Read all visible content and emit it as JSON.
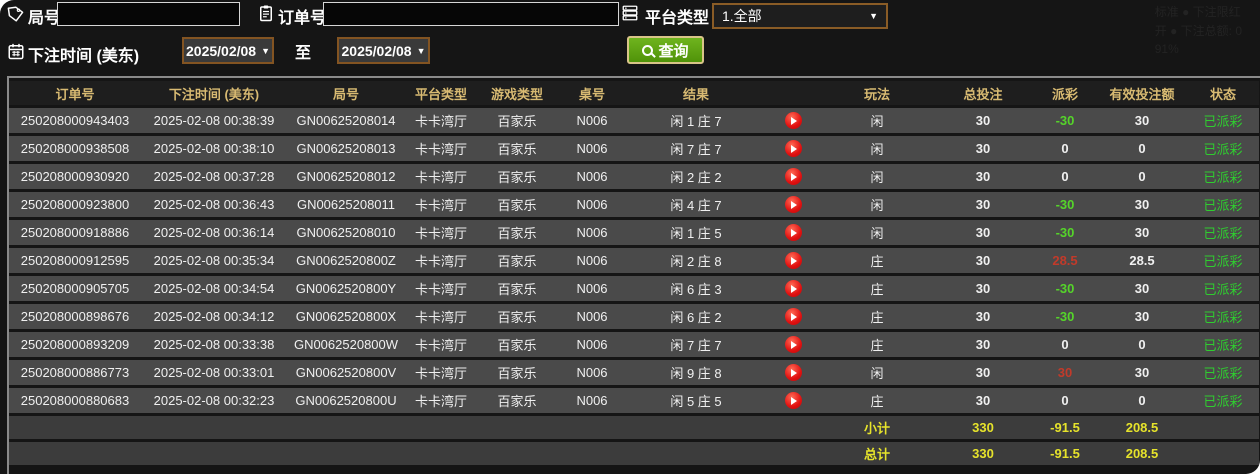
{
  "topbar": {
    "round_label": "局号",
    "round_input_value": "",
    "order_label": "订单号",
    "order_input_value": "",
    "platform_label": "平台类型",
    "platform_value": "1.全部",
    "caret": "▼",
    "date_label": "下注时间 (美东)",
    "date_from": "2025/02/08",
    "to_label": "至",
    "date_to": "2025/02/08",
    "search_label": "查询"
  },
  "watermark": {
    "line1": "标准 ●  下注限红",
    "line2": "开 ●  下注总额: 0",
    "line3": "91%"
  },
  "colors": {
    "header_gold": "#d8ba72",
    "loss_green": "#55d42a",
    "win_red": "#c23a2a",
    "status_green": "#2fcd2f",
    "total_yellow": "#e6e32b",
    "button_green": "#509309",
    "play_red": "#e11010"
  },
  "table": {
    "headers": [
      {
        "key": "order",
        "label": "订单号"
      },
      {
        "key": "time",
        "label": "下注时间 (美东)"
      },
      {
        "key": "round",
        "label": "局号"
      },
      {
        "key": "platform",
        "label": "平台类型"
      },
      {
        "key": "game",
        "label": "游戏类型"
      },
      {
        "key": "table",
        "label": "桌号"
      },
      {
        "key": "result",
        "label": "结果"
      },
      {
        "key": "play",
        "label": ""
      },
      {
        "key": "playtype",
        "label": "玩法"
      },
      {
        "key": "bet",
        "label": "总投注"
      },
      {
        "key": "payout",
        "label": "派彩"
      },
      {
        "key": "valid",
        "label": "有效投注额"
      },
      {
        "key": "status",
        "label": "状态"
      }
    ],
    "rows": [
      {
        "order": "250208000943403",
        "time": "2025-02-08 00:38:39",
        "round": "GN00625208014",
        "platform": "卡卡湾厅",
        "game": "百家乐",
        "table": "N006",
        "result": "闲 1 庄 7",
        "playtype": "闲",
        "bet": "30",
        "payout": "-30",
        "payout_color": "green",
        "valid": "30",
        "status": "已派彩"
      },
      {
        "order": "250208000938508",
        "time": "2025-02-08 00:38:10",
        "round": "GN00625208013",
        "platform": "卡卡湾厅",
        "game": "百家乐",
        "table": "N006",
        "result": "闲 7 庄 7",
        "playtype": "闲",
        "bet": "30",
        "payout": "0",
        "payout_color": "white",
        "valid": "0",
        "status": "已派彩"
      },
      {
        "order": "250208000930920",
        "time": "2025-02-08 00:37:28",
        "round": "GN00625208012",
        "platform": "卡卡湾厅",
        "game": "百家乐",
        "table": "N006",
        "result": "闲 2 庄 2",
        "playtype": "闲",
        "bet": "30",
        "payout": "0",
        "payout_color": "white",
        "valid": "0",
        "status": "已派彩"
      },
      {
        "order": "250208000923800",
        "time": "2025-02-08 00:36:43",
        "round": "GN00625208011",
        "platform": "卡卡湾厅",
        "game": "百家乐",
        "table": "N006",
        "result": "闲 4 庄 7",
        "playtype": "闲",
        "bet": "30",
        "payout": "-30",
        "payout_color": "green",
        "valid": "30",
        "status": "已派彩"
      },
      {
        "order": "250208000918886",
        "time": "2025-02-08 00:36:14",
        "round": "GN00625208010",
        "platform": "卡卡湾厅",
        "game": "百家乐",
        "table": "N006",
        "result": "闲 1 庄 5",
        "playtype": "闲",
        "bet": "30",
        "payout": "-30",
        "payout_color": "green",
        "valid": "30",
        "status": "已派彩"
      },
      {
        "order": "250208000912595",
        "time": "2025-02-08 00:35:34",
        "round": "GN0062520800Z",
        "platform": "卡卡湾厅",
        "game": "百家乐",
        "table": "N006",
        "result": "闲 2 庄 8",
        "playtype": "庄",
        "bet": "30",
        "payout": "28.5",
        "payout_color": "red",
        "valid": "28.5",
        "status": "已派彩"
      },
      {
        "order": "250208000905705",
        "time": "2025-02-08 00:34:54",
        "round": "GN0062520800Y",
        "platform": "卡卡湾厅",
        "game": "百家乐",
        "table": "N006",
        "result": "闲 6 庄 3",
        "playtype": "庄",
        "bet": "30",
        "payout": "-30",
        "payout_color": "green",
        "valid": "30",
        "status": "已派彩"
      },
      {
        "order": "250208000898676",
        "time": "2025-02-08 00:34:12",
        "round": "GN0062520800X",
        "platform": "卡卡湾厅",
        "game": "百家乐",
        "table": "N006",
        "result": "闲 6 庄 2",
        "playtype": "庄",
        "bet": "30",
        "payout": "-30",
        "payout_color": "green",
        "valid": "30",
        "status": "已派彩"
      },
      {
        "order": "250208000893209",
        "time": "2025-02-08 00:33:38",
        "round": "GN0062520800W",
        "platform": "卡卡湾厅",
        "game": "百家乐",
        "table": "N006",
        "result": "闲 7 庄 7",
        "playtype": "庄",
        "bet": "30",
        "payout": "0",
        "payout_color": "white",
        "valid": "0",
        "status": "已派彩"
      },
      {
        "order": "250208000886773",
        "time": "2025-02-08 00:33:01",
        "round": "GN0062520800V",
        "platform": "卡卡湾厅",
        "game": "百家乐",
        "table": "N006",
        "result": "闲 9 庄 8",
        "playtype": "闲",
        "bet": "30",
        "payout": "30",
        "payout_color": "red",
        "valid": "30",
        "status": "已派彩"
      },
      {
        "order": "250208000880683",
        "time": "2025-02-08 00:32:23",
        "round": "GN0062520800U",
        "platform": "卡卡湾厅",
        "game": "百家乐",
        "table": "N006",
        "result": "闲 5 庄 5",
        "playtype": "庄",
        "bet": "30",
        "payout": "0",
        "payout_color": "white",
        "valid": "0",
        "status": "已派彩"
      }
    ],
    "subtotal": {
      "label": "小计",
      "bet": "330",
      "payout": "-91.5",
      "valid": "208.5"
    },
    "total": {
      "label": "总计",
      "bet": "330",
      "payout": "-91.5",
      "valid": "208.5"
    }
  }
}
